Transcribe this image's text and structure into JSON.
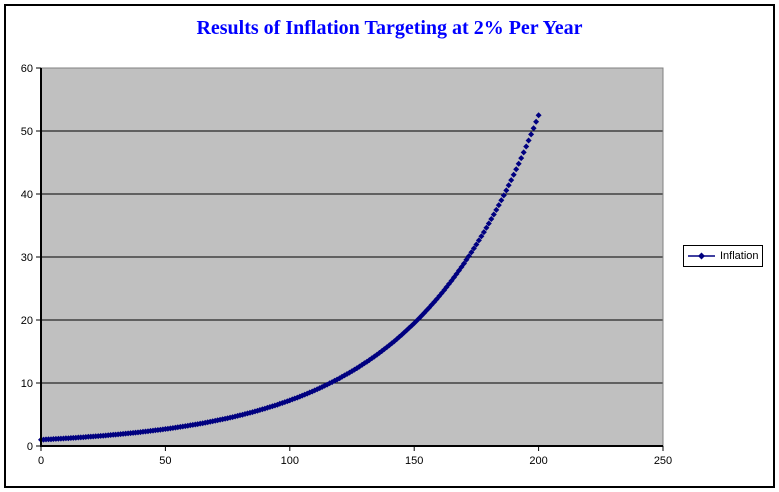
{
  "chart_data": {
    "type": "scatter",
    "title": "Results of Inflation Targeting at 2% Per Year",
    "xlabel": "",
    "ylabel": "",
    "xlim": [
      0,
      250
    ],
    "ylim": [
      0,
      60
    ],
    "x_ticks": [
      "0",
      "50",
      "100",
      "150",
      "200",
      "250"
    ],
    "y_ticks": [
      "0",
      "10",
      "20",
      "30",
      "40",
      "50",
      "60"
    ],
    "x_tick_values": [
      0,
      50,
      100,
      150,
      200,
      250
    ],
    "y_tick_values": [
      0,
      10,
      20,
      30,
      40,
      50,
      60
    ],
    "gridlines": "horizontal-major",
    "colors": {
      "plot_background": "#c0c0c0",
      "plot_border": "#808080",
      "gridline": "#000000",
      "axis": "#000000",
      "tick_label": "#000000",
      "title": "#0000ff",
      "series": "#000080",
      "chart_background": "#ffffff",
      "chart_border": "#000000"
    },
    "legend": {
      "position": "right",
      "entries": [
        {
          "label": "Inflation",
          "marker": "diamond",
          "color": "#000080"
        }
      ]
    },
    "series": [
      {
        "name": "Inflation",
        "marker": "diamond",
        "color": "#000080",
        "points_rule": {
          "description": "Price index starting at 1.0 compounding 2% per year, one diamond marker per year",
          "formula": "value = start_value * base ^ x",
          "base": 1.02,
          "x_start": 0,
          "x_end": 200,
          "x_step": 1,
          "start_value": 1.0,
          "end_value": 52.48,
          "key_points": [
            {
              "x": 0,
              "value": 1.0
            },
            {
              "x": 50,
              "value": 2.69
            },
            {
              "x": 100,
              "value": 7.24
            },
            {
              "x": 116,
              "value": 9.94
            },
            {
              "x": 150,
              "value": 19.5
            },
            {
              "x": 200,
              "value": 52.48
            }
          ]
        }
      }
    ]
  }
}
